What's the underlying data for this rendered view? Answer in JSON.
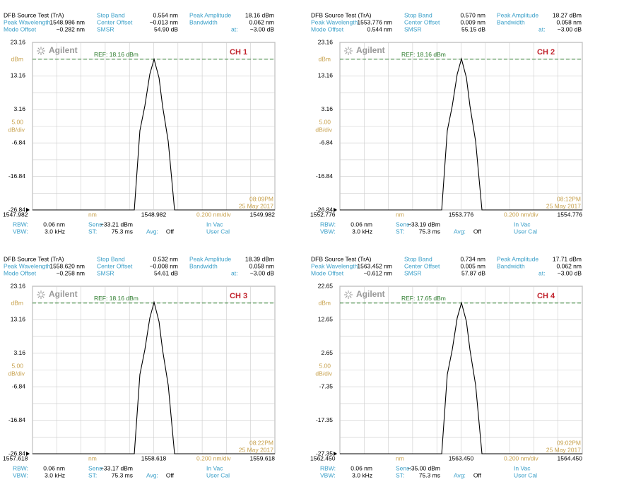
{
  "chart_data": [
    {
      "type": "line",
      "title": "DFB Source Test (TrA)",
      "readouts": [
        {
          "label": "Peak Wavelength",
          "value": "1548.986 nm"
        },
        {
          "label": "Mode Offset",
          "value": "−0.282 nm"
        },
        {
          "label": "Stop Band",
          "value": "0.554 nm"
        },
        {
          "label": "Center Offset",
          "value": "−0.013 nm"
        },
        {
          "label": "SMSR",
          "value": "54.90 dB"
        },
        {
          "label": "Peak Amplitude",
          "value": "18.16 dBm"
        },
        {
          "label": "Bandwidth",
          "value": "0.062 nm"
        },
        {
          "label": "at:",
          "value": "−3.00 dB"
        }
      ],
      "x": [
        1547.982,
        1548.822,
        1548.868,
        1548.909,
        1548.95,
        1548.985,
        1549.026,
        1549.055,
        1549.102,
        1549.154,
        1549.982
      ],
      "series": [
        {
          "color": "#000000",
          "values": [
            -26.84,
            -26.84,
            -3.2,
            4.2,
            13.7,
            18.16,
            12.6,
            4.2,
            -6.4,
            -26.84,
            -26.84
          ]
        }
      ],
      "xlim": [
        1547.982,
        1549.982
      ],
      "xticks": [
        1547.982,
        1548.982,
        1549.982
      ],
      "ylim": [
        -26.84,
        23.16
      ],
      "yticks": [
        23.16,
        13.16,
        3.16,
        -6.84,
        -16.84,
        -26.84
      ],
      "ref": 18.16,
      "ref_label": "REF: 18.16 dBm",
      "y_unit": "dBm",
      "scale": "5.00",
      "scale_unit": "dB/div",
      "x_unit": "nm",
      "x_scale": "0.200 nm/div",
      "channel": "CH 1",
      "logo": "Agilent",
      "time": "08:09PM",
      "date": "25 May 2017",
      "footer": [
        {
          "label": "RBW:",
          "value": "0.06 nm"
        },
        {
          "label": "Sens:",
          "value": "−33.21 dBm"
        },
        {
          "label": "VBW:",
          "value": "3.0 kHz"
        },
        {
          "label": "ST:",
          "value": "75.3 ms"
        },
        {
          "label": "Avg:",
          "value": "Off"
        }
      ],
      "status": [
        "In Vac",
        "User Cal"
      ]
    },
    {
      "type": "line",
      "title": "DFB Source Test (TrA)",
      "readouts": [
        {
          "label": "Peak Wavelength",
          "value": "1553.776 nm"
        },
        {
          "label": "Mode Offset",
          "value": "0.544 nm"
        },
        {
          "label": "Stop Band",
          "value": "0.570 nm"
        },
        {
          "label": "Center Offset",
          "value": "0.009 nm"
        },
        {
          "label": "SMSR",
          "value": "55.15 dB"
        },
        {
          "label": "Peak Amplitude",
          "value": "18.27 dBm"
        },
        {
          "label": "Bandwidth",
          "value": "0.058 nm"
        },
        {
          "label": "at:",
          "value": "−3.00 dB"
        }
      ],
      "x": [
        1552.776,
        1553.616,
        1553.662,
        1553.703,
        1553.744,
        1553.779,
        1553.82,
        1553.849,
        1553.896,
        1553.948,
        1554.776
      ],
      "series": [
        {
          "color": "#000000",
          "values": [
            -26.84,
            -26.84,
            -3.2,
            4.2,
            13.7,
            18.27,
            12.6,
            4.2,
            -6.4,
            -26.84,
            -26.84
          ]
        }
      ],
      "xlim": [
        1552.776,
        1554.776
      ],
      "xticks": [
        1552.776,
        1553.776,
        1554.776
      ],
      "ylim": [
        -26.84,
        23.16
      ],
      "yticks": [
        23.16,
        13.16,
        3.16,
        -6.84,
        -16.84,
        -26.84
      ],
      "ref": 18.16,
      "ref_label": "REF: 18.16 dBm",
      "y_unit": "dBm",
      "scale": "5.00",
      "scale_unit": "dB/div",
      "x_unit": "nm",
      "x_scale": "0.200 nm/div",
      "channel": "CH 2",
      "logo": "Agilent",
      "time": "08:12PM",
      "date": "25 May 2017",
      "footer": [
        {
          "label": "RBW:",
          "value": "0.06 nm"
        },
        {
          "label": "Sens:",
          "value": "−33.19 dBm"
        },
        {
          "label": "VBW:",
          "value": "3.0 kHz"
        },
        {
          "label": "ST:",
          "value": "75.3 ms"
        },
        {
          "label": "Avg:",
          "value": "Off"
        }
      ],
      "status": [
        "In Vac",
        "User Cal"
      ]
    },
    {
      "type": "line",
      "title": "DFB Source Test (TrA)",
      "readouts": [
        {
          "label": "Peak Wavelength",
          "value": "1558.620 nm"
        },
        {
          "label": "Mode Offset",
          "value": "−0.258 nm"
        },
        {
          "label": "Stop Band",
          "value": "0.532 nm"
        },
        {
          "label": "Center Offset",
          "value": "−0.008 nm"
        },
        {
          "label": "SMSR",
          "value": "54.61 dB"
        },
        {
          "label": "Peak Amplitude",
          "value": "18.39 dBm"
        },
        {
          "label": "Bandwidth",
          "value": "0.058 nm"
        },
        {
          "label": "at:",
          "value": "−3.00 dB"
        }
      ],
      "x": [
        1557.618,
        1558.458,
        1558.504,
        1558.545,
        1558.586,
        1558.621,
        1558.662,
        1558.691,
        1558.738,
        1558.79,
        1559.618
      ],
      "series": [
        {
          "color": "#000000",
          "values": [
            -26.84,
            -26.84,
            -3.2,
            4.2,
            13.7,
            18.39,
            12.6,
            4.2,
            -6.4,
            -26.84,
            -26.84
          ]
        }
      ],
      "xlim": [
        1557.618,
        1559.618
      ],
      "xticks": [
        1557.618,
        1558.618,
        1559.618
      ],
      "ylim": [
        -26.84,
        23.16
      ],
      "yticks": [
        23.16,
        13.16,
        3.16,
        -6.84,
        -16.84,
        -26.84
      ],
      "ref": 18.16,
      "ref_label": "REF: 18.16 dBm",
      "y_unit": "dBm",
      "scale": "5.00",
      "scale_unit": "dB/div",
      "x_unit": "nm",
      "x_scale": "0.200 nm/div",
      "channel": "CH 3",
      "logo": "Agilent",
      "time": "08:22PM",
      "date": "25 May 2017",
      "footer": [
        {
          "label": "RBW:",
          "value": "0.06 nm"
        },
        {
          "label": "Sens:",
          "value": "−33.17 dBm"
        },
        {
          "label": "VBW:",
          "value": "3.0 kHz"
        },
        {
          "label": "ST:",
          "value": "75.3 ms"
        },
        {
          "label": "Avg:",
          "value": "Off"
        }
      ],
      "status": [
        "In Vac",
        "User Cal"
      ]
    },
    {
      "type": "line",
      "title": "DFB Source Test (TrA)",
      "readouts": [
        {
          "label": "Peak Wavelength",
          "value": "1563.452 nm"
        },
        {
          "label": "Mode Offset",
          "value": "−0.612 nm"
        },
        {
          "label": "Stop Band",
          "value": "0.734 nm"
        },
        {
          "label": "Center Offset",
          "value": "0.005 nm"
        },
        {
          "label": "SMSR",
          "value": "57.87 dB"
        },
        {
          "label": "Peak Amplitude",
          "value": "17.71 dBm"
        },
        {
          "label": "Bandwidth",
          "value": "0.062 nm"
        },
        {
          "label": "at:",
          "value": "−3.00 dB"
        }
      ],
      "x": [
        1562.45,
        1563.29,
        1563.336,
        1563.377,
        1563.418,
        1563.453,
        1563.494,
        1563.523,
        1563.57,
        1563.622,
        1564.45
      ],
      "series": [
        {
          "color": "#000000",
          "values": [
            -27.35,
            -27.35,
            -3.7,
            3.7,
            13.2,
            17.71,
            12.1,
            3.7,
            -6.9,
            -27.35,
            -27.35
          ]
        }
      ],
      "xlim": [
        1562.45,
        1564.45
      ],
      "xticks": [
        {
          "value": 1562.45,
          "label": "1562.450"
        },
        {
          "value": 1563.45,
          "label": "1563.450"
        },
        {
          "value": 1564.45,
          "label": "1564.450"
        }
      ],
      "ylim": [
        -27.35,
        22.65
      ],
      "yticks": [
        22.65,
        12.65,
        2.65,
        -7.35,
        -17.35,
        -27.35
      ],
      "ref": 17.65,
      "ref_label": "REF: 17.65 dBm",
      "y_unit": "dBm",
      "scale": "5.00",
      "scale_unit": "dB/div",
      "x_unit": "nm",
      "x_scale": "0.200 nm/div",
      "channel": "CH 4",
      "logo": "Agilent",
      "time": "09:02PM",
      "date": "25 May 2017",
      "footer": [
        {
          "label": "RBW:",
          "value": "0.06 nm"
        },
        {
          "label": "Sens:",
          "value": "−35.00 dBm"
        },
        {
          "label": "VBW:",
          "value": "3.0 kHz"
        },
        {
          "label": "ST:",
          "value": "75.3 ms"
        },
        {
          "label": "Avg:",
          "value": "Off"
        }
      ],
      "status": [
        "In Vac",
        "User Cal"
      ]
    }
  ]
}
